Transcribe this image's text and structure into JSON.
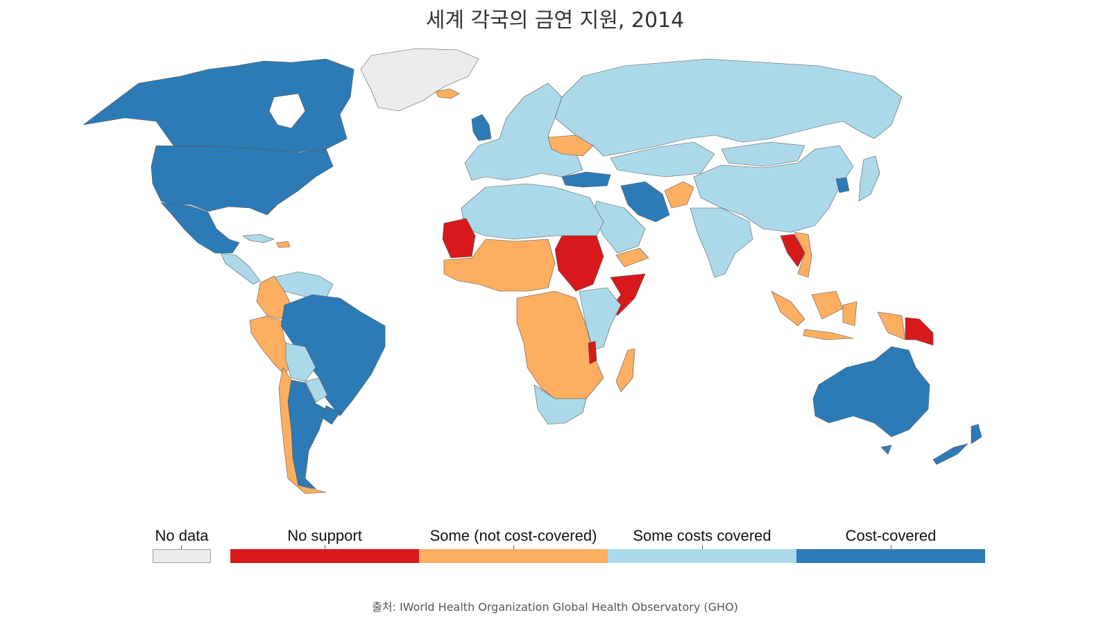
{
  "title": "세계 각국의 금연 지원, 2014",
  "source": "출처: IWorld Health Organization Global Health Observatory (GHO)",
  "colors": {
    "no_data": "#ececec",
    "no_support": "#d7191c",
    "some_not_cost_covered": "#fdae61",
    "some_costs_covered": "#abd9e9",
    "cost_covered": "#2c7bb6"
  },
  "legend": [
    {
      "label": "No data",
      "color": "#ececec"
    },
    {
      "label": "No support",
      "color": "#d7191c"
    },
    {
      "label": "Some (not cost-covered)",
      "color": "#fdae61"
    },
    {
      "label": "Some costs covered",
      "color": "#abd9e9"
    },
    {
      "label": "Cost-covered",
      "color": "#2c7bb6"
    }
  ],
  "regions": [
    {
      "name": "Greenland",
      "category": "No data"
    },
    {
      "name": "Canada",
      "category": "Cost-covered"
    },
    {
      "name": "United States",
      "category": "Cost-covered"
    },
    {
      "name": "Mexico",
      "category": "Cost-covered"
    },
    {
      "name": "Central America",
      "category": "Some costs covered"
    },
    {
      "name": "Cuba",
      "category": "Some costs covered"
    },
    {
      "name": "Dominican Republic",
      "category": "Some (not cost-covered)"
    },
    {
      "name": "Venezuela",
      "category": "Some costs covered"
    },
    {
      "name": "Colombia",
      "category": "Some (not cost-covered)"
    },
    {
      "name": "Peru",
      "category": "Some (not cost-covered)"
    },
    {
      "name": "Brazil",
      "category": "Cost-covered"
    },
    {
      "name": "Bolivia",
      "category": "Some costs covered"
    },
    {
      "name": "Paraguay",
      "category": "Some costs covered"
    },
    {
      "name": "Argentina",
      "category": "Cost-covered"
    },
    {
      "name": "Uruguay",
      "category": "Cost-covered"
    },
    {
      "name": "Chile",
      "category": "Some (not cost-covered)"
    },
    {
      "name": "Iceland",
      "category": "Some (not cost-covered)"
    },
    {
      "name": "United Kingdom",
      "category": "Cost-covered"
    },
    {
      "name": "Europe",
      "category": "Some costs covered"
    },
    {
      "name": "Ukraine",
      "category": "Some (not cost-covered)"
    },
    {
      "name": "Russia",
      "category": "Some costs covered"
    },
    {
      "name": "Turkey",
      "category": "Cost-covered"
    },
    {
      "name": "Iran",
      "category": "Cost-covered"
    },
    {
      "name": "Afghanistan",
      "category": "Some (not cost-covered)"
    },
    {
      "name": "China",
      "category": "Some costs covered"
    },
    {
      "name": "Mongolia",
      "category": "Some costs covered"
    },
    {
      "name": "Kazakhstan",
      "category": "Some costs covered"
    },
    {
      "name": "Japan",
      "category": "Some costs covered"
    },
    {
      "name": "South Korea",
      "category": "Cost-covered"
    },
    {
      "name": "India",
      "category": "Some costs covered"
    },
    {
      "name": "Laos",
      "category": "No support"
    },
    {
      "name": "Vietnam",
      "category": "Some (not cost-covered)"
    },
    {
      "name": "Indonesia",
      "category": "Some (not cost-covered)"
    },
    {
      "name": "Papua New Guinea",
      "category": "No support"
    },
    {
      "name": "Australia",
      "category": "Cost-covered"
    },
    {
      "name": "New Zealand",
      "category": "Cost-covered"
    },
    {
      "name": "North Africa",
      "category": "Some costs covered"
    },
    {
      "name": "Mauritania",
      "category": "No support"
    },
    {
      "name": "Sudan",
      "category": "No support"
    },
    {
      "name": "Somalia",
      "category": "No support"
    },
    {
      "name": "West Africa",
      "category": "Some (not cost-covered)"
    },
    {
      "name": "Central Africa",
      "category": "Some (not cost-covered)"
    },
    {
      "name": "East Africa",
      "category": "Some costs covered"
    },
    {
      "name": "Malawi",
      "category": "No support"
    },
    {
      "name": "Madagascar",
      "category": "Some (not cost-covered)"
    },
    {
      "name": "South Africa",
      "category": "Some costs covered"
    },
    {
      "name": "Saudi Arabia",
      "category": "Some costs covered"
    },
    {
      "name": "Yemen",
      "category": "Some (not cost-covered)"
    }
  ]
}
